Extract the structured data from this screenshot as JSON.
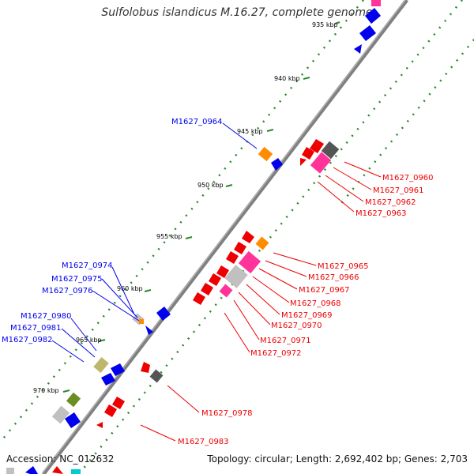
{
  "title": "Sulfolobus islandicus M.16.27, complete genome",
  "footer": {
    "accession": "Accession: NC_012632",
    "summary": "Topology: circular; Length: 2,692,402 bp; Genes: 2,703"
  },
  "ticks": [
    "935 kbp",
    "940 kbp",
    "945 kbp",
    "950 kbp",
    "955 kbp",
    "960 kbp",
    "965 kbp",
    "970 kbp"
  ],
  "labels_blue": [
    "M1627_0964",
    "M1627_0974",
    "M1627_0975",
    "M1627_0976",
    "M1627_0980",
    "M1627_0981",
    "M1627_0982"
  ],
  "labels_red": [
    "M1627_0960",
    "M1627_0961",
    "M1627_0962",
    "M1627_0963",
    "M1627_0965",
    "M1627_0966",
    "M1627_0967",
    "M1627_0968",
    "M1627_0969",
    "M1627_0970",
    "M1627_0971",
    "M1627_0972",
    "M1627_0978",
    "M1627_0983"
  ],
  "colors": {
    "forward": "#0000ee",
    "reverse": "#ee0000",
    "backbone": "#808080",
    "tick": "#2a8a2a",
    "pink": "#ff3399",
    "orange": "#ff8c00",
    "olive": "#6b8e23",
    "khaki": "#bdb76b",
    "gray": "#c0c0c0",
    "dark_gray": "#555555"
  }
}
